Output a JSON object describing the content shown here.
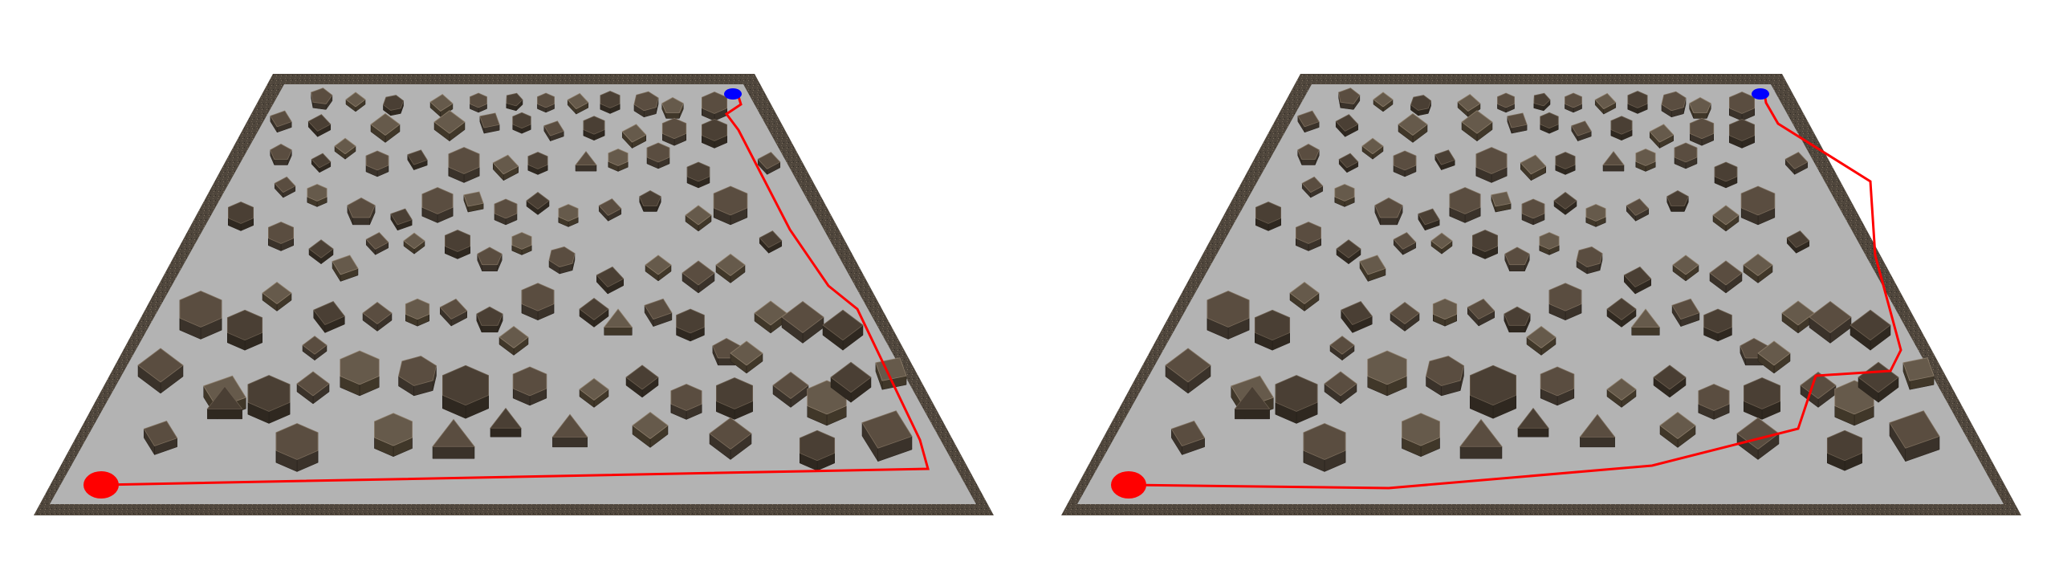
{
  "panels": [
    {
      "id": "left",
      "start_marker_color": "#ff0000",
      "goal_marker_color": "#0000ff",
      "path_color": "#ff0000"
    },
    {
      "id": "right",
      "start_marker_color": "#ff0000",
      "goal_marker_color": "#0000ff",
      "path_color": "#ff0000"
    }
  ],
  "colors": {
    "floor": "#b3b3b3",
    "wall": "#4d463e",
    "wall_top": "#6b6357",
    "rock_dark": "#3e362e",
    "rock_mid": "#5c5044",
    "rock_light": "#7a6c5c"
  }
}
